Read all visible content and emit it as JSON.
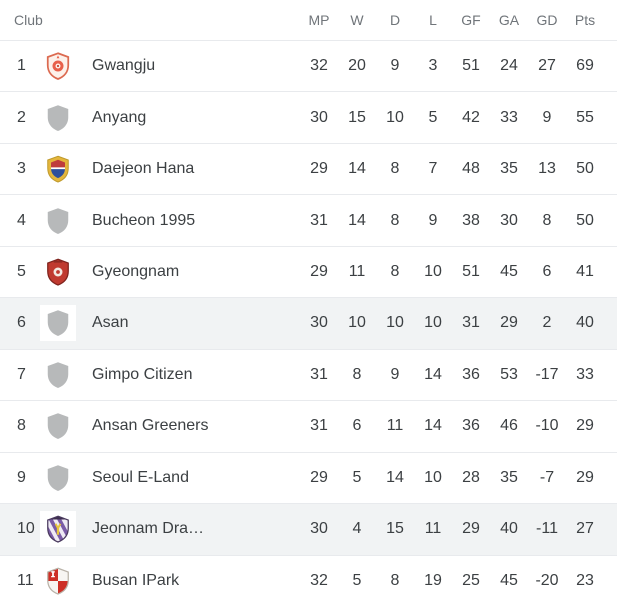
{
  "colors": {
    "highlight_row": "#f1f3f4",
    "divider": "#e8eaed",
    "text": "#3c4043",
    "header_text": "#70757a",
    "placeholder_shield": "#b7b9ba",
    "gwangju_red": "#dc6a50",
    "daejeon_gold": "#e4b63c",
    "gyeongnam_red": "#c03a30",
    "jeonnam_purple": "#7a5ba6",
    "busan_red": "#cd2f26"
  },
  "table": {
    "club_header": "Club",
    "stat_columns": [
      "MP",
      "W",
      "D",
      "L",
      "GF",
      "GA",
      "GD",
      "Pts"
    ],
    "stat_keys": [
      "mp",
      "w",
      "d",
      "l",
      "gf",
      "ga",
      "gd",
      "pts"
    ],
    "rows": [
      {
        "pos": "1",
        "club": "Gwangju",
        "badge": "gwangju-crest-icon",
        "highlighted": false,
        "mp": "32",
        "w": "20",
        "d": "9",
        "l": "3",
        "gf": "51",
        "ga": "24",
        "gd": "27",
        "pts": "69"
      },
      {
        "pos": "2",
        "club": "Anyang",
        "badge": "generic-shield-icon",
        "highlighted": false,
        "mp": "30",
        "w": "15",
        "d": "10",
        "l": "5",
        "gf": "42",
        "ga": "33",
        "gd": "9",
        "pts": "55"
      },
      {
        "pos": "3",
        "club": "Daejeon Hana",
        "badge": "daejeon-crest-icon",
        "highlighted": false,
        "mp": "29",
        "w": "14",
        "d": "8",
        "l": "7",
        "gf": "48",
        "ga": "35",
        "gd": "13",
        "pts": "50"
      },
      {
        "pos": "4",
        "club": "Bucheon 1995",
        "badge": "generic-shield-icon",
        "highlighted": false,
        "mp": "31",
        "w": "14",
        "d": "8",
        "l": "9",
        "gf": "38",
        "ga": "30",
        "gd": "8",
        "pts": "50"
      },
      {
        "pos": "5",
        "club": "Gyeongnam",
        "badge": "gyeongnam-crest-icon",
        "highlighted": false,
        "mp": "29",
        "w": "11",
        "d": "8",
        "l": "10",
        "gf": "51",
        "ga": "45",
        "gd": "6",
        "pts": "41"
      },
      {
        "pos": "6",
        "club": "Asan",
        "badge": "generic-shield-icon",
        "highlighted": true,
        "mp": "30",
        "w": "10",
        "d": "10",
        "l": "10",
        "gf": "31",
        "ga": "29",
        "gd": "2",
        "pts": "40"
      },
      {
        "pos": "7",
        "club": "Gimpo Citizen",
        "badge": "generic-shield-icon",
        "highlighted": false,
        "mp": "31",
        "w": "8",
        "d": "9",
        "l": "14",
        "gf": "36",
        "ga": "53",
        "gd": "-17",
        "pts": "33"
      },
      {
        "pos": "8",
        "club": "Ansan Greeners",
        "badge": "generic-shield-icon",
        "highlighted": false,
        "mp": "31",
        "w": "6",
        "d": "11",
        "l": "14",
        "gf": "36",
        "ga": "46",
        "gd": "-10",
        "pts": "29"
      },
      {
        "pos": "9",
        "club": "Seoul E-Land",
        "badge": "generic-shield-icon",
        "highlighted": false,
        "mp": "29",
        "w": "5",
        "d": "14",
        "l": "10",
        "gf": "28",
        "ga": "35",
        "gd": "-7",
        "pts": "29"
      },
      {
        "pos": "10",
        "club": "Jeonnam Dra…",
        "badge": "jeonnam-crest-icon",
        "highlighted": true,
        "mp": "30",
        "w": "4",
        "d": "15",
        "l": "11",
        "gf": "29",
        "ga": "40",
        "gd": "-11",
        "pts": "27"
      },
      {
        "pos": "11",
        "club": "Busan IPark",
        "badge": "busan-crest-icon",
        "highlighted": false,
        "mp": "32",
        "w": "5",
        "d": "8",
        "l": "19",
        "gf": "25",
        "ga": "45",
        "gd": "-20",
        "pts": "23"
      }
    ]
  }
}
